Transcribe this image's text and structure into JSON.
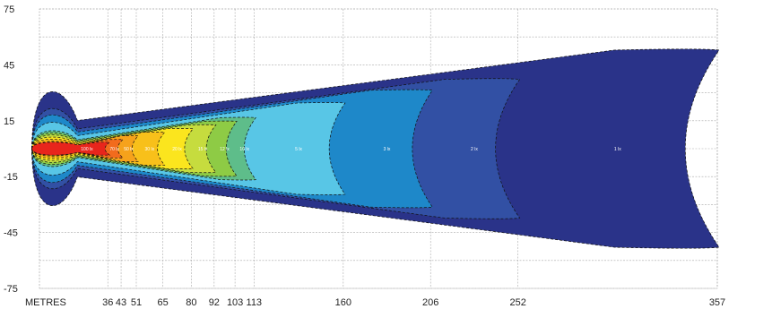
{
  "chart_data": {
    "type": "heatmap",
    "title": "",
    "xlabel": "METRES",
    "ylabel": "",
    "x_ticks": [
      "36",
      "43",
      "51",
      "65",
      "80",
      "92",
      "103",
      "113",
      "160",
      "206",
      "252",
      "357"
    ],
    "x_tick_values": [
      36,
      43,
      51,
      65,
      80,
      92,
      103,
      113,
      160,
      206,
      252,
      357
    ],
    "y_ticks": [
      "75",
      "45",
      "15",
      "-15",
      "-45",
      "-75"
    ],
    "y_tick_values": [
      75,
      45,
      15,
      -15,
      -45,
      -75
    ],
    "xlim": [
      0,
      357
    ],
    "ylim": [
      -75,
      75
    ],
    "grid": true,
    "zones": [
      {
        "label": "100 lx",
        "color": "#e8251c",
        "reach": 36,
        "half_width": 3.5
      },
      {
        "label": "70 lx",
        "color": "#f26b1d",
        "reach": 43,
        "half_width": 5
      },
      {
        "label": "50 lx",
        "color": "#f6a21b",
        "reach": 51,
        "half_width": 7
      },
      {
        "label": "30 lx",
        "color": "#f8c01a",
        "reach": 65,
        "half_width": 9
      },
      {
        "label": "20 lx",
        "color": "#fbe51e",
        "reach": 80,
        "half_width": 11
      },
      {
        "label": "15 lx",
        "color": "#c6dc3e",
        "reach": 92,
        "half_width": 13
      },
      {
        "label": "12 lx",
        "color": "#8ecb45",
        "reach": 103,
        "half_width": 15
      },
      {
        "label": "10 lx",
        "color": "#5ebd8a",
        "reach": 113,
        "half_width": 17
      },
      {
        "label": "5 lx",
        "color": "#58c6e6",
        "reach": 160,
        "half_width": 25
      },
      {
        "label": "3 lx",
        "color": "#1e88c9",
        "reach": 206,
        "half_width": 32
      },
      {
        "label": "2 lx",
        "color": "#3250a4",
        "reach": 252,
        "half_width": 38
      },
      {
        "label": "1 lx",
        "color": "#2a3389",
        "reach": 357,
        "half_width": 54
      }
    ]
  }
}
